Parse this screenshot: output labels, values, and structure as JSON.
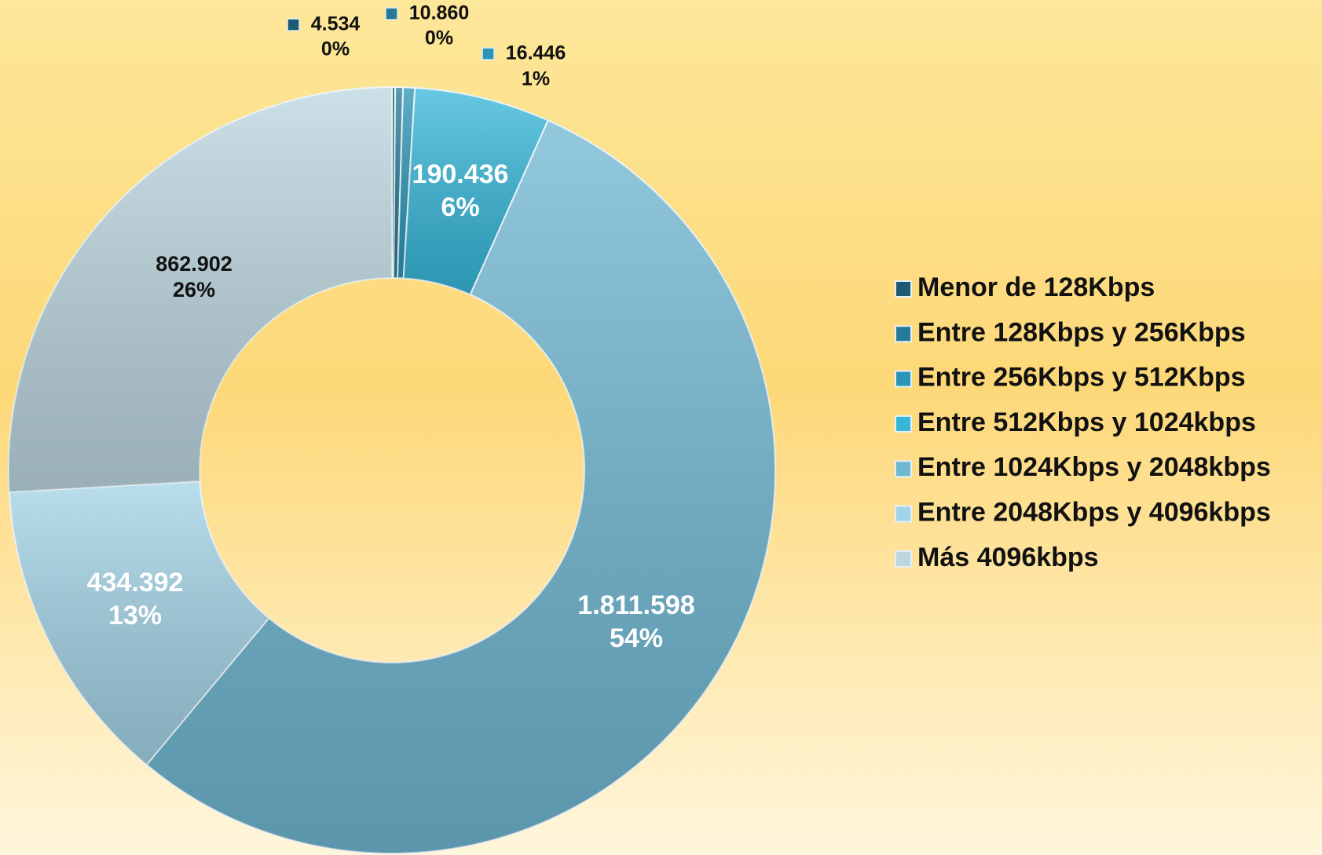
{
  "chart_data": {
    "type": "donut",
    "categories": [
      "Menor de 128Kbps",
      "Entre 128Kbps y 256Kbps",
      "Entre 256Kbps y 512Kbps",
      "Entre 512Kbps y 1024kbps",
      "Entre 1024Kbps y 2048kbps",
      "Entre 2048Kbps y 4096kbps",
      "Más 4096kbps"
    ],
    "values": [
      4534,
      10860,
      16446,
      190436,
      1811598,
      434392,
      862902
    ],
    "value_labels": [
      "4.534",
      "10.860",
      "16.446",
      "190.436",
      "1.811.598",
      "434.392",
      "862.902"
    ],
    "percent_labels": [
      "0%",
      "0%",
      "1%",
      "6%",
      "54%",
      "13%",
      "26%"
    ],
    "colors": [
      "#1d5a73",
      "#247a98",
      "#2b95b8",
      "#36b7da",
      "#6fb7d2",
      "#a3d3e6",
      "#bcd6e0"
    ],
    "legend": "right"
  }
}
